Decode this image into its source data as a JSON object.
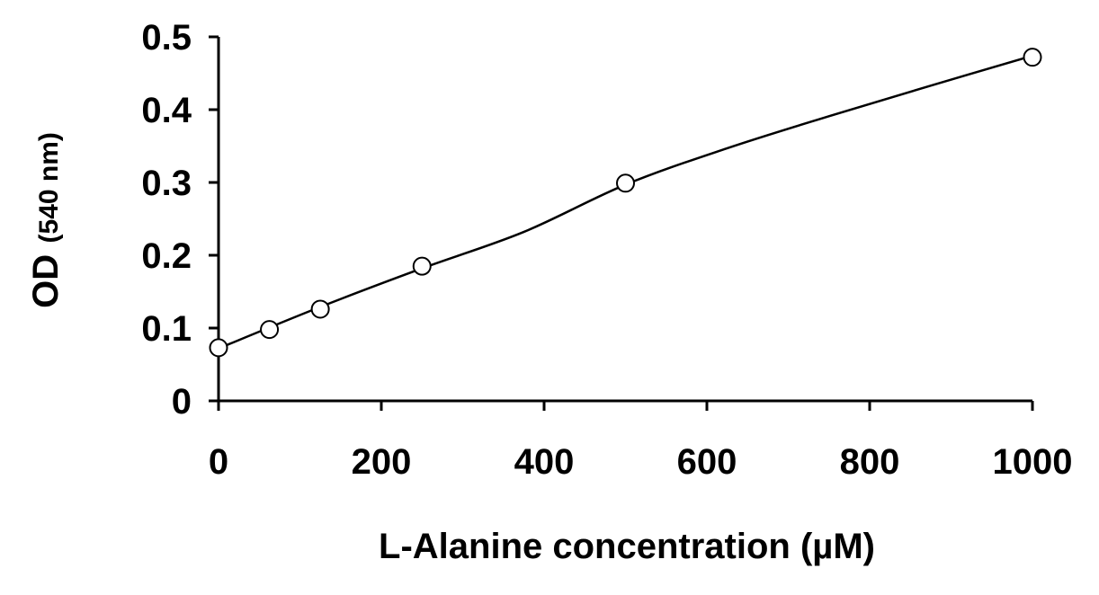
{
  "chart_data": {
    "type": "scatter",
    "title": "",
    "xlabel": "L-Alanine concentration (µM)",
    "ylabel_main": "OD",
    "ylabel_unit": "(540 nm)",
    "xlim": [
      0,
      1000
    ],
    "ylim": [
      0,
      0.5
    ],
    "x_ticks": [
      0,
      200,
      400,
      600,
      800,
      1000
    ],
    "x_tick_labels": [
      "0",
      "200",
      "400",
      "600",
      "800",
      "1000"
    ],
    "y_ticks": [
      0,
      0.1,
      0.2,
      0.3,
      0.4,
      0.5
    ],
    "y_tick_labels": [
      "0",
      "0.1",
      "0.2",
      "0.3",
      "0.4",
      "0.5"
    ],
    "grid": false,
    "legend": "none",
    "series": [
      {
        "marker": "open-circle",
        "x": [
          0,
          62.5,
          125,
          250,
          500,
          1000
        ],
        "y": [
          0.073,
          0.098,
          0.126,
          0.185,
          0.299,
          0.472
        ]
      }
    ],
    "fit_curve": {
      "style": "solid-line",
      "x": [
        0,
        125,
        250,
        375,
        500,
        625,
        750,
        875,
        1000
      ],
      "y": [
        0.072,
        0.129,
        0.182,
        0.232,
        0.297,
        0.347,
        0.391,
        0.433,
        0.474
      ]
    }
  }
}
